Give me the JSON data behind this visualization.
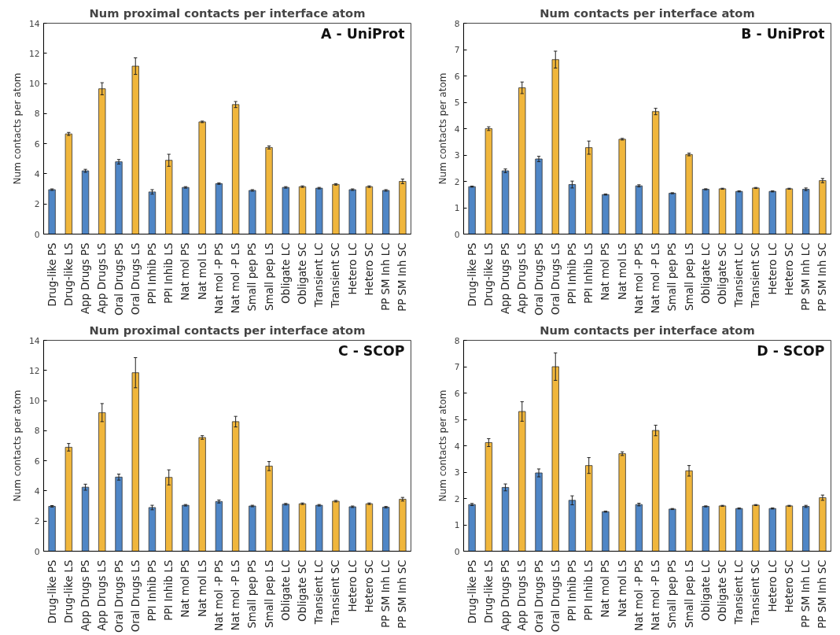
{
  "chart_data": [
    {
      "type": "bar",
      "title": "Num proximal contacts per interface atom",
      "ylabel": "Num contacts per atom",
      "annotations": [
        "A - UniProt"
      ],
      "categories": [
        "Drug-like PS",
        "Drug-like LS",
        "App Drugs PS",
        "App Drugs LS",
        "Oral Drugs PS",
        "Oral Drugs LS",
        "PPI Inhib PS",
        "PPI Inhib LS",
        "Nat mol PS",
        "Nat mol LS",
        "Nat mol -P PS",
        "Nat mol -P LS",
        "Small pep PS",
        "Small pep LS",
        "Obligate LC",
        "Obligate SC",
        "Transient LC",
        "Transient SC",
        "Hetero LC",
        "Hetero SC",
        "PP SM Inh LC",
        "PP SM Inh SC"
      ],
      "values": [
        2.95,
        6.65,
        4.2,
        9.65,
        4.8,
        11.15,
        2.8,
        4.9,
        3.1,
        7.45,
        3.35,
        8.6,
        2.9,
        5.75,
        3.1,
        3.15,
        3.05,
        3.3,
        2.95,
        3.15,
        2.9,
        3.5
      ],
      "errors": [
        0.05,
        0.1,
        0.1,
        0.4,
        0.15,
        0.55,
        0.15,
        0.4,
        0.05,
        0.05,
        0.05,
        0.2,
        0.05,
        0.1,
        0.05,
        0.05,
        0.05,
        0.05,
        0.05,
        0.05,
        0.05,
        0.15
      ],
      "colors": [
        "#4f86c6",
        "#f0b63c",
        "#4f86c6",
        "#f0b63c",
        "#4f86c6",
        "#f0b63c",
        "#4f86c6",
        "#f0b63c",
        "#4f86c6",
        "#f0b63c",
        "#4f86c6",
        "#f0b63c",
        "#4f86c6",
        "#f0b63c",
        "#4f86c6",
        "#f0b63c",
        "#4f86c6",
        "#f0b63c",
        "#4f86c6",
        "#f0b63c",
        "#4f86c6",
        "#f0b63c"
      ],
      "ylim": [
        0,
        14
      ],
      "yticks": [
        0,
        2,
        4,
        6,
        8,
        10,
        12,
        14
      ]
    },
    {
      "type": "bar",
      "title": "Num contacts per interface atom",
      "ylabel": "Num contacts per atom",
      "annotations": [
        "B - UniProt"
      ],
      "categories": [
        "Drug-like PS",
        "Drug-like LS",
        "App Drugs PS",
        "App Drugs LS",
        "Oral Drugs PS",
        "Oral Drugs LS",
        "PPI Inhib PS",
        "PPI Inhib LS",
        "Nat mol PS",
        "Nat mol LS",
        "Nat mol -P PS",
        "Nat mol -P LS",
        "Small pep PS",
        "Small pep LS",
        "Obligate LC",
        "Obligate SC",
        "Transient LC",
        "Transient SC",
        "Hetero LC",
        "Hetero SC",
        "PP SM Inh LC",
        "PP SM Inh SC"
      ],
      "values": [
        1.8,
        4.0,
        2.4,
        5.55,
        2.85,
        6.62,
        1.88,
        3.28,
        1.5,
        3.6,
        1.83,
        4.65,
        1.55,
        3.02,
        1.7,
        1.72,
        1.62,
        1.75,
        1.62,
        1.72,
        1.7,
        2.03
      ],
      "errors": [
        0.02,
        0.07,
        0.07,
        0.22,
        0.1,
        0.32,
        0.13,
        0.25,
        0.02,
        0.03,
        0.04,
        0.12,
        0.02,
        0.05,
        0.02,
        0.02,
        0.02,
        0.02,
        0.02,
        0.02,
        0.05,
        0.08
      ],
      "colors": [
        "#4f86c6",
        "#f0b63c",
        "#4f86c6",
        "#f0b63c",
        "#4f86c6",
        "#f0b63c",
        "#4f86c6",
        "#f0b63c",
        "#4f86c6",
        "#f0b63c",
        "#4f86c6",
        "#f0b63c",
        "#4f86c6",
        "#f0b63c",
        "#4f86c6",
        "#f0b63c",
        "#4f86c6",
        "#f0b63c",
        "#4f86c6",
        "#f0b63c",
        "#4f86c6",
        "#f0b63c"
      ],
      "ylim": [
        0,
        8
      ],
      "yticks": [
        0,
        1,
        2,
        3,
        4,
        5,
        6,
        7,
        8
      ]
    },
    {
      "type": "bar",
      "title": "Num proximal contacts per interface atom",
      "ylabel": "Num contacts per atom",
      "annotations": [
        "C - SCOP"
      ],
      "categories": [
        "Drug-like PS",
        "Drug-like LS",
        "App Drugs PS",
        "App Drugs LS",
        "Oral Drugs PS",
        "Oral Drugs LS",
        "PPI Inhib PS",
        "PPI Inhib LS",
        "Nat mol PS",
        "Nat mol LS",
        "Nat mol -P PS",
        "Nat mol -P LS",
        "Small pep PS",
        "Small pep LS",
        "Obligate LC",
        "Obligate SC",
        "Transient LC",
        "Transient SC",
        "Hetero LC",
        "Hetero SC",
        "PP SM Inh LC",
        "PP SM Inh SC"
      ],
      "values": [
        2.98,
        6.9,
        4.25,
        9.2,
        4.92,
        11.85,
        2.9,
        4.9,
        3.05,
        7.55,
        3.3,
        8.6,
        3.0,
        5.65,
        3.12,
        3.15,
        3.05,
        3.32,
        2.95,
        3.15,
        2.92,
        3.45
      ],
      "errors": [
        0.05,
        0.25,
        0.2,
        0.6,
        0.2,
        1.0,
        0.15,
        0.5,
        0.05,
        0.12,
        0.1,
        0.35,
        0.05,
        0.3,
        0.05,
        0.05,
        0.05,
        0.05,
        0.05,
        0.05,
        0.05,
        0.12
      ],
      "colors": [
        "#4f86c6",
        "#f0b63c",
        "#4f86c6",
        "#f0b63c",
        "#4f86c6",
        "#f0b63c",
        "#4f86c6",
        "#f0b63c",
        "#4f86c6",
        "#f0b63c",
        "#4f86c6",
        "#f0b63c",
        "#4f86c6",
        "#f0b63c",
        "#4f86c6",
        "#f0b63c",
        "#4f86c6",
        "#f0b63c",
        "#4f86c6",
        "#f0b63c",
        "#4f86c6",
        "#f0b63c"
      ],
      "ylim": [
        0,
        14
      ],
      "yticks": [
        0,
        2,
        4,
        6,
        8,
        10,
        12,
        14
      ]
    },
    {
      "type": "bar",
      "title": "Num contacts per interface atom",
      "ylabel": "Num contacts per atom",
      "annotations": [
        "D - SCOP"
      ],
      "categories": [
        "Drug-like PS",
        "Drug-like LS",
        "App Drugs PS",
        "App Drugs LS",
        "Oral Drugs PS",
        "Oral Drugs LS",
        "PPI Inhib PS",
        "PPI Inhib LS",
        "Nat mol PS",
        "Nat mol LS",
        "Nat mol -P PS",
        "Nat mol -P LS",
        "Small pep PS",
        "Small pep LS",
        "Obligate LC",
        "Obligate SC",
        "Transient LC",
        "Transient SC",
        "Hetero LC",
        "Hetero SC",
        "PP SM Inh LC",
        "PP SM Inh SC"
      ],
      "values": [
        1.77,
        4.12,
        2.42,
        5.3,
        2.97,
        7.0,
        1.93,
        3.25,
        1.5,
        3.7,
        1.77,
        4.58,
        1.6,
        3.05,
        1.7,
        1.72,
        1.62,
        1.75,
        1.62,
        1.72,
        1.7,
        2.03
      ],
      "errors": [
        0.04,
        0.15,
        0.13,
        0.37,
        0.15,
        0.52,
        0.17,
        0.3,
        0.02,
        0.07,
        0.05,
        0.2,
        0.02,
        0.2,
        0.02,
        0.02,
        0.02,
        0.02,
        0.02,
        0.02,
        0.04,
        0.1
      ],
      "colors": [
        "#4f86c6",
        "#f0b63c",
        "#4f86c6",
        "#f0b63c",
        "#4f86c6",
        "#f0b63c",
        "#4f86c6",
        "#f0b63c",
        "#4f86c6",
        "#f0b63c",
        "#4f86c6",
        "#f0b63c",
        "#4f86c6",
        "#f0b63c",
        "#4f86c6",
        "#f0b63c",
        "#4f86c6",
        "#f0b63c",
        "#4f86c6",
        "#f0b63c",
        "#4f86c6",
        "#f0b63c"
      ],
      "ylim": [
        0,
        8
      ],
      "yticks": [
        0,
        1,
        2,
        3,
        4,
        5,
        6,
        7,
        8
      ]
    }
  ]
}
